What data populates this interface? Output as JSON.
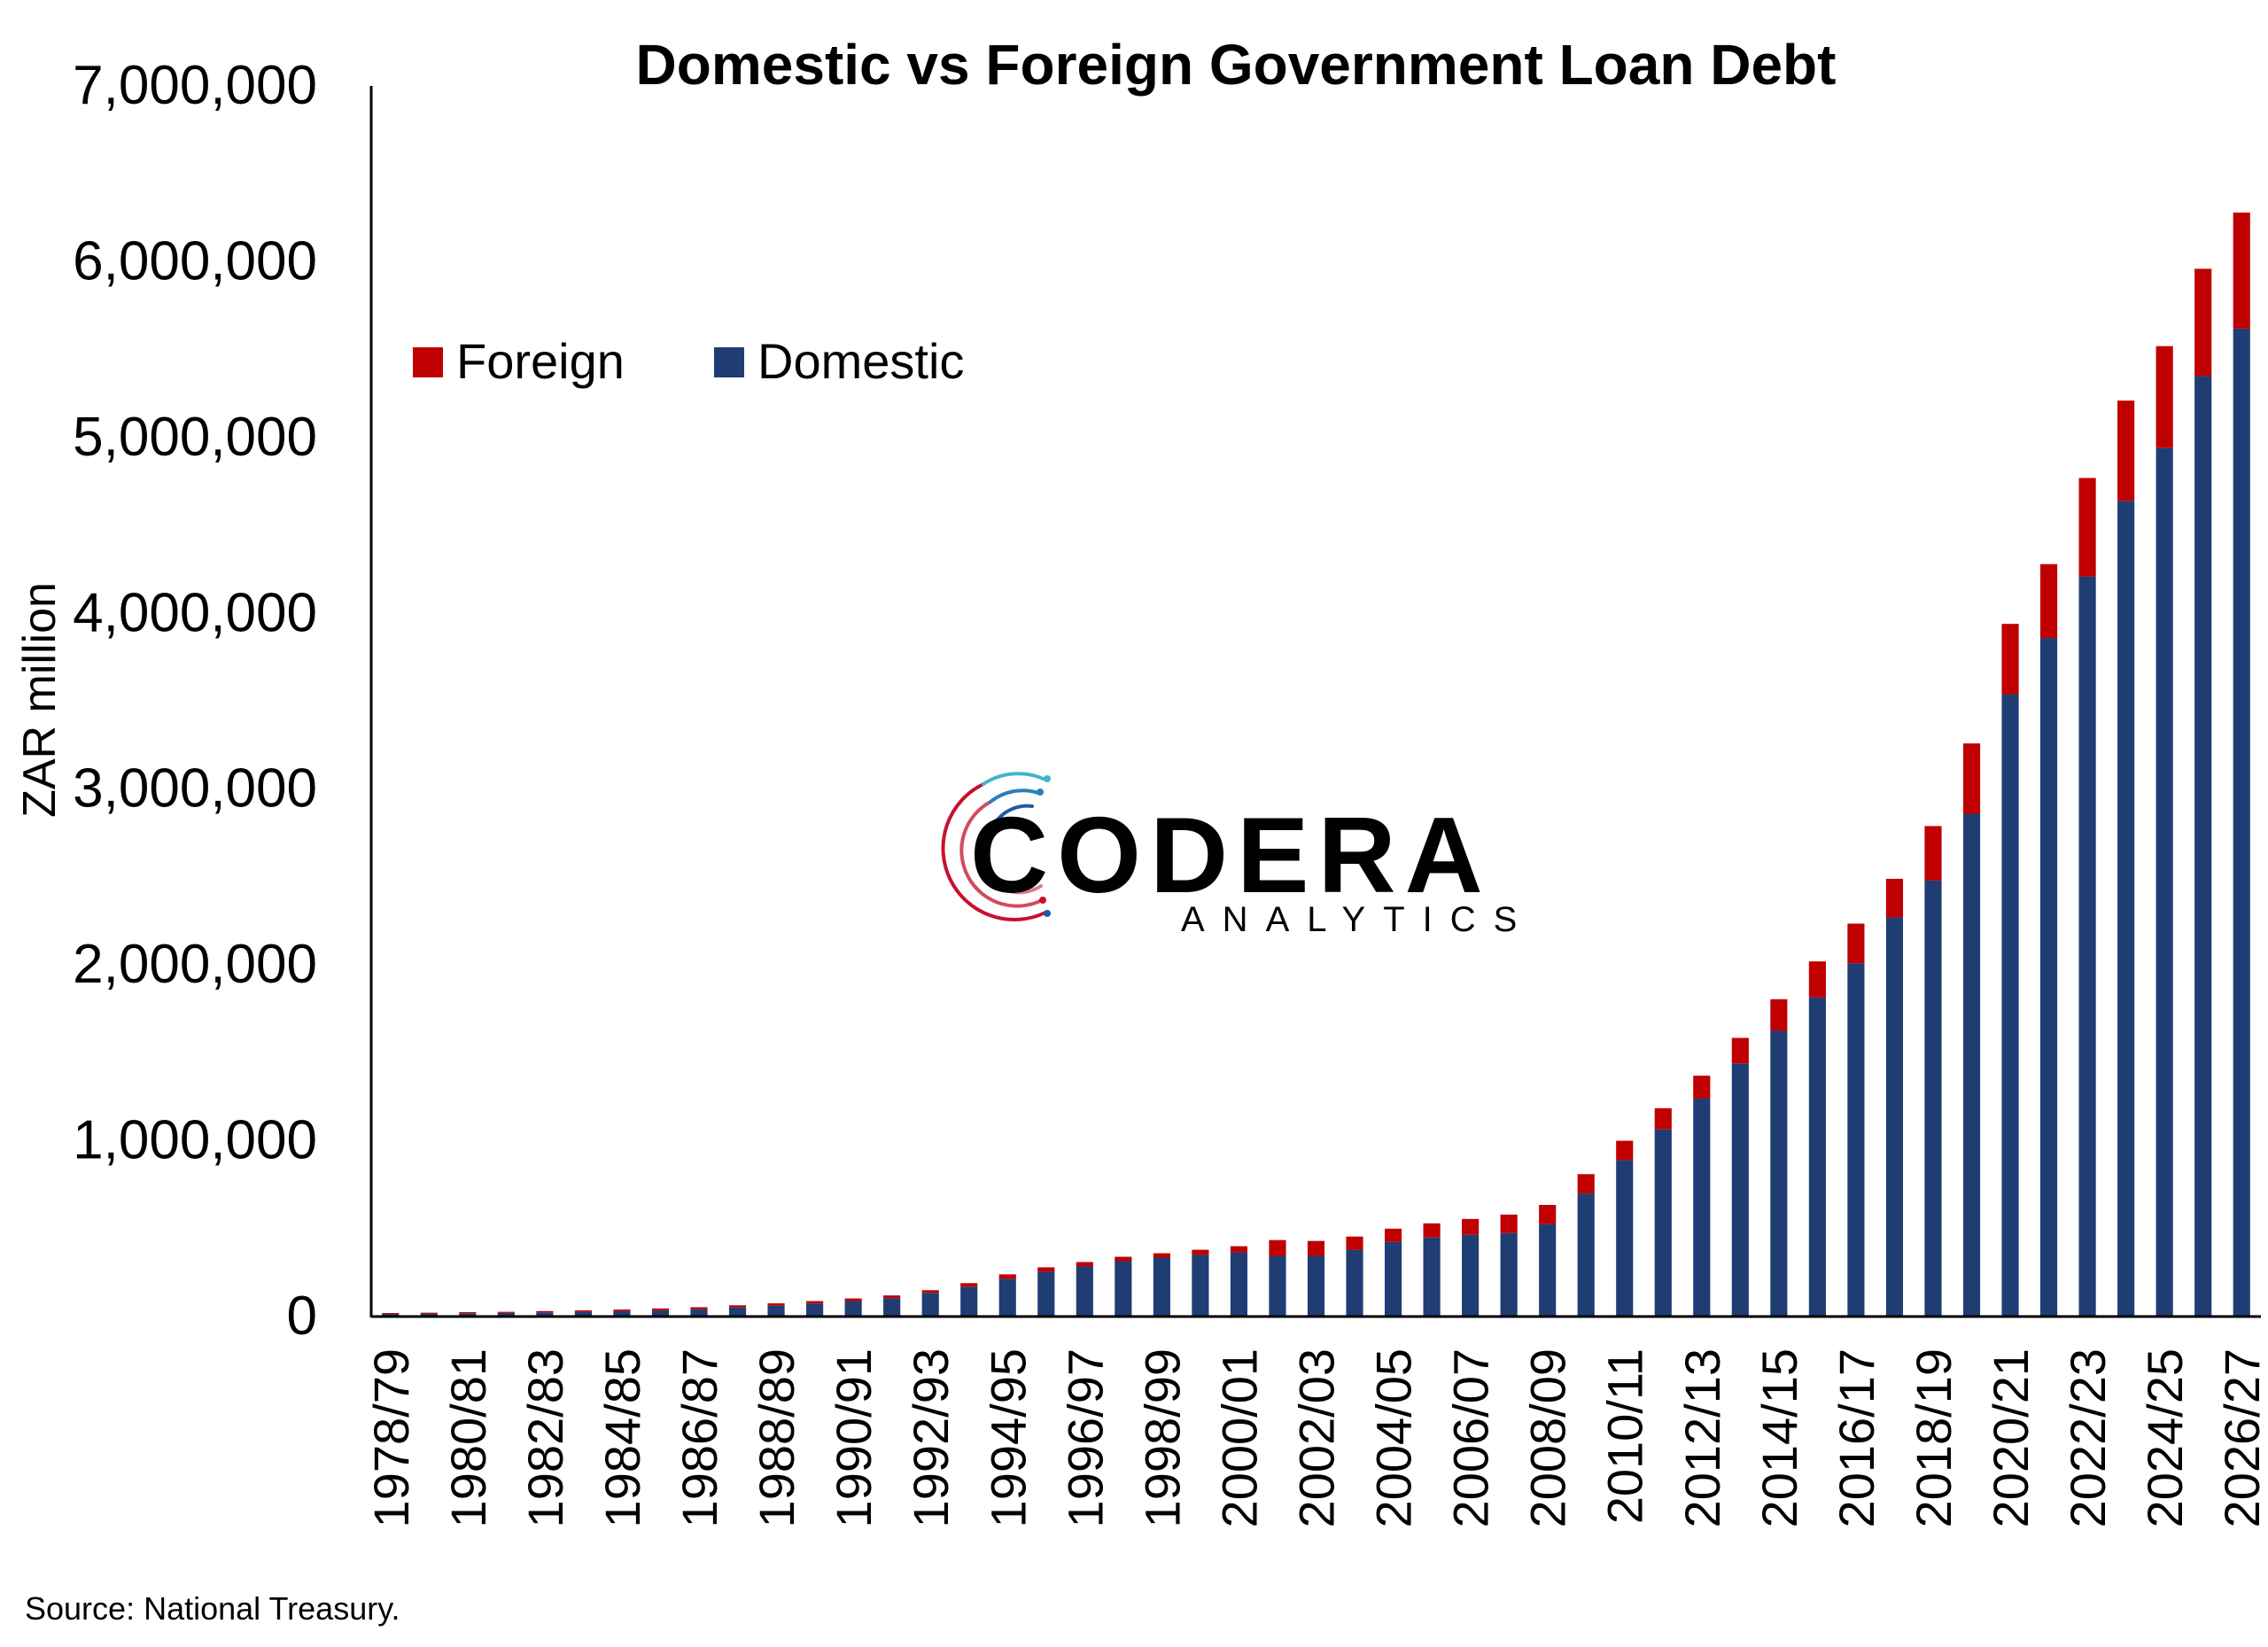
{
  "chart_data": {
    "type": "bar",
    "stacked": true,
    "title": "Domestic vs Foreign Government Loan Debt",
    "ylabel": "ZAR million",
    "xlabel": "",
    "ylim": [
      0,
      7000000
    ],
    "yticks": [
      0,
      1000000,
      2000000,
      3000000,
      4000000,
      5000000,
      6000000,
      7000000
    ],
    "ytick_labels": [
      "0",
      "1,000,000",
      "2,000,000",
      "3,000,000",
      "4,000,000",
      "5,000,000",
      "6,000,000",
      "7,000,000"
    ],
    "grid": false,
    "legend_position": "top-left",
    "categories": [
      "1978/79",
      "1979/80",
      "1980/81",
      "1981/82",
      "1982/83",
      "1983/84",
      "1984/85",
      "1985/86",
      "1986/87",
      "1987/88",
      "1988/89",
      "1989/90",
      "1990/91",
      "1991/92",
      "1992/93",
      "1993/94",
      "1994/95",
      "1995/96",
      "1996/97",
      "1997/98",
      "1998/99",
      "1999/00",
      "2000/01",
      "2001/02",
      "2002/03",
      "2003/04",
      "2004/05",
      "2005/06",
      "2006/07",
      "2007/08",
      "2008/09",
      "2009/10",
      "2010/11",
      "2011/12",
      "2012/13",
      "2013/14",
      "2014/15",
      "2015/16",
      "2016/17",
      "2017/18",
      "2018/19",
      "2019/20",
      "2020/21",
      "2021/22",
      "2022/23",
      "2023/24",
      "2024/25",
      "2025/26",
      "2026/27"
    ],
    "tick_labels": [
      "1978/79",
      "1980/81",
      "1982/83",
      "1984/85",
      "1986/87",
      "1988/89",
      "1990/91",
      "1992/93",
      "1994/95",
      "1996/97",
      "1998/99",
      "2000/01",
      "2002/03",
      "2004/05",
      "2006/07",
      "2008/09",
      "2010/11",
      "2012/13",
      "2014/15",
      "2016/17",
      "2018/19",
      "2020/21",
      "2022/23",
      "2024/25",
      "2026/27"
    ],
    "series": [
      {
        "name": "Domestic",
        "color": "#1f3d73",
        "values": [
          15000,
          17000,
          19000,
          21000,
          24000,
          27000,
          31000,
          36000,
          42000,
          52000,
          62000,
          74000,
          88000,
          105000,
          135000,
          170000,
          215000,
          255000,
          285000,
          315000,
          335000,
          350000,
          365000,
          345000,
          345000,
          380000,
          425000,
          450000,
          465000,
          475000,
          525000,
          700000,
          890000,
          1065000,
          1240000,
          1440000,
          1625000,
          1815000,
          2010000,
          2270000,
          2480000,
          2860000,
          3540000,
          3860000,
          4210000,
          4640000,
          4940000,
          5350000,
          5620000
        ]
      },
      {
        "name": "Foreign",
        "color": "#c00000",
        "values": [
          5000,
          5000,
          6000,
          6000,
          7000,
          8000,
          9000,
          10000,
          11000,
          12000,
          13000,
          14000,
          15000,
          15000,
          15000,
          20000,
          25000,
          25000,
          25000,
          25000,
          25000,
          30000,
          35000,
          90000,
          85000,
          75000,
          75000,
          80000,
          90000,
          105000,
          110000,
          110000,
          110000,
          120000,
          130000,
          145000,
          180000,
          205000,
          225000,
          220000,
          310000,
          400000,
          400000,
          420000,
          560000,
          570000,
          580000,
          610000,
          660000
        ]
      }
    ],
    "annotations": [
      "Source: National Treasury."
    ]
  },
  "logo": {
    "word": "CODERA",
    "sub": "ANALYTICS",
    "colors": {
      "ring_red": "#c8102e",
      "ring_blue": "#1f5aa6",
      "ring_teal": "#3fb6c9",
      "word": "#111111",
      "sub_red": "#c8102e",
      "sub_blue": "#2a7fb8"
    }
  }
}
